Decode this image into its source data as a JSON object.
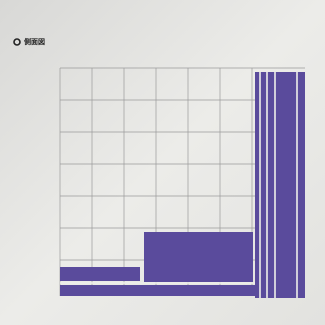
{
  "label": "側面図"
}
